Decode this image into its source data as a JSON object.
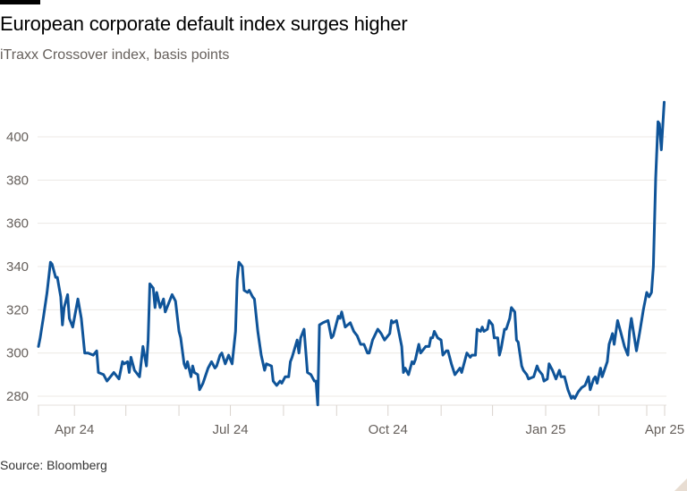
{
  "title": "European corporate default index surges higher",
  "subtitle": "iTraxx Crossover index, basis points",
  "source": "Source: Bloomberg",
  "chart_data": {
    "type": "line",
    "title": "European corporate default index surges higher",
    "subtitle": "iTraxx Crossover index, basis points",
    "xlabel": "",
    "ylabel": "",
    "ylim": [
      275,
      420
    ],
    "yticks": [
      280,
      300,
      320,
      340,
      360,
      380,
      400
    ],
    "grid": true,
    "line_color": "#0f5499",
    "x_range": [
      "2024-03-11",
      "2025-04-08"
    ],
    "xticks": [
      {
        "date": "2024-03-11",
        "label": ""
      },
      {
        "date": "2024-04-01",
        "label": "Apr 24"
      },
      {
        "date": "2024-05-01",
        "label": ""
      },
      {
        "date": "2024-06-01",
        "label": ""
      },
      {
        "date": "2024-07-01",
        "label": "Jul 24"
      },
      {
        "date": "2024-08-01",
        "label": ""
      },
      {
        "date": "2024-09-01",
        "label": ""
      },
      {
        "date": "2024-10-01",
        "label": "Oct 24"
      },
      {
        "date": "2024-11-01",
        "label": ""
      },
      {
        "date": "2024-12-01",
        "label": ""
      },
      {
        "date": "2025-01-01",
        "label": "Jan 25"
      },
      {
        "date": "2025-02-01",
        "label": ""
      },
      {
        "date": "2025-03-01",
        "label": ""
      },
      {
        "date": "2025-04-08",
        "label": "Apr 25"
      }
    ],
    "series": [
      {
        "points": [
          [
            "2024-03-11",
            303
          ],
          [
            "2024-03-12",
            307
          ],
          [
            "2024-03-14",
            317
          ],
          [
            "2024-03-16",
            328
          ],
          [
            "2024-03-18",
            342
          ],
          [
            "2024-03-19",
            341
          ],
          [
            "2024-03-21",
            335
          ],
          [
            "2024-03-22",
            335
          ],
          [
            "2024-03-24",
            326
          ],
          [
            "2024-03-25",
            313
          ],
          [
            "2024-03-26",
            321
          ],
          [
            "2024-03-28",
            327
          ],
          [
            "2024-03-29",
            316
          ],
          [
            "2024-03-31",
            312
          ],
          [
            "2024-04-03",
            325
          ],
          [
            "2024-04-05",
            316
          ],
          [
            "2024-04-07",
            300
          ],
          [
            "2024-04-09",
            300
          ],
          [
            "2024-04-12",
            299
          ],
          [
            "2024-04-14",
            301
          ],
          [
            "2024-04-15",
            291
          ],
          [
            "2024-04-18",
            290
          ],
          [
            "2024-04-20",
            287
          ],
          [
            "2024-04-24",
            291
          ],
          [
            "2024-04-27",
            288
          ],
          [
            "2024-04-29",
            296
          ],
          [
            "2024-04-30",
            295
          ],
          [
            "2024-05-02",
            296
          ],
          [
            "2024-05-03",
            291
          ],
          [
            "2024-05-04",
            298
          ],
          [
            "2024-05-06",
            292
          ],
          [
            "2024-05-09",
            289
          ],
          [
            "2024-05-11",
            303
          ],
          [
            "2024-05-13",
            294
          ],
          [
            "2024-05-14",
            306
          ],
          [
            "2024-05-15",
            332
          ],
          [
            "2024-05-17",
            330
          ],
          [
            "2024-05-18",
            321
          ],
          [
            "2024-05-19",
            328
          ],
          [
            "2024-05-21",
            321
          ],
          [
            "2024-05-23",
            325
          ],
          [
            "2024-05-24",
            319
          ],
          [
            "2024-05-28",
            327
          ],
          [
            "2024-05-30",
            324
          ],
          [
            "2024-06-01",
            310
          ],
          [
            "2024-06-02",
            307
          ],
          [
            "2024-06-04",
            295
          ],
          [
            "2024-06-05",
            293
          ],
          [
            "2024-06-06",
            296
          ],
          [
            "2024-06-08",
            289
          ],
          [
            "2024-06-09",
            294
          ],
          [
            "2024-06-10",
            291
          ],
          [
            "2024-06-12",
            290
          ],
          [
            "2024-06-13",
            283
          ],
          [
            "2024-06-15",
            286
          ],
          [
            "2024-06-18",
            293
          ],
          [
            "2024-06-20",
            296
          ],
          [
            "2024-06-22",
            293
          ],
          [
            "2024-06-23",
            294
          ],
          [
            "2024-06-25",
            299
          ],
          [
            "2024-06-26",
            300
          ],
          [
            "2024-06-28",
            295
          ],
          [
            "2024-06-30",
            299
          ],
          [
            "2024-07-02",
            295
          ],
          [
            "2024-07-04",
            310
          ],
          [
            "2024-07-05",
            334
          ],
          [
            "2024-07-06",
            342
          ],
          [
            "2024-07-08",
            340
          ],
          [
            "2024-07-09",
            329
          ],
          [
            "2024-07-11",
            328
          ],
          [
            "2024-07-12",
            329
          ],
          [
            "2024-07-14",
            326
          ],
          [
            "2024-07-15",
            325
          ],
          [
            "2024-07-17",
            310
          ],
          [
            "2024-07-19",
            299
          ],
          [
            "2024-07-21",
            292
          ],
          [
            "2024-07-22",
            295
          ],
          [
            "2024-07-25",
            294
          ],
          [
            "2024-07-26",
            287
          ],
          [
            "2024-07-28",
            285
          ],
          [
            "2024-07-30",
            287
          ],
          [
            "2024-07-31",
            286
          ],
          [
            "2024-08-02",
            289
          ],
          [
            "2024-08-04",
            289
          ],
          [
            "2024-08-05",
            296
          ],
          [
            "2024-08-06",
            298
          ],
          [
            "2024-08-09",
            306
          ],
          [
            "2024-08-10",
            300
          ],
          [
            "2024-08-11",
            307
          ],
          [
            "2024-08-13",
            311
          ],
          [
            "2024-08-15",
            291
          ],
          [
            "2024-08-17",
            290
          ],
          [
            "2024-08-19",
            287
          ],
          [
            "2024-08-20",
            287
          ],
          [
            "2024-08-21",
            276
          ],
          [
            "2024-08-22",
            313
          ],
          [
            "2024-08-24",
            314
          ],
          [
            "2024-08-27",
            315
          ],
          [
            "2024-08-29",
            307
          ],
          [
            "2024-08-30",
            308
          ],
          [
            "2024-09-02",
            317
          ],
          [
            "2024-09-03",
            316
          ],
          [
            "2024-09-04",
            319
          ],
          [
            "2024-09-06",
            312
          ],
          [
            "2024-09-09",
            314
          ],
          [
            "2024-09-11",
            310
          ],
          [
            "2024-09-13",
            308
          ],
          [
            "2024-09-15",
            304
          ],
          [
            "2024-09-17",
            304
          ],
          [
            "2024-09-19",
            300
          ],
          [
            "2024-09-20",
            300
          ],
          [
            "2024-09-22",
            306
          ],
          [
            "2024-09-25",
            311
          ],
          [
            "2024-09-27",
            309
          ],
          [
            "2024-09-29",
            306
          ],
          [
            "2024-10-02",
            309
          ],
          [
            "2024-10-03",
            315
          ],
          [
            "2024-10-04",
            314
          ],
          [
            "2024-10-06",
            315
          ],
          [
            "2024-10-09",
            303
          ],
          [
            "2024-10-10",
            291
          ],
          [
            "2024-10-11",
            293
          ],
          [
            "2024-10-13",
            290
          ],
          [
            "2024-10-15",
            296
          ],
          [
            "2024-10-16",
            295
          ],
          [
            "2024-10-17",
            297
          ],
          [
            "2024-10-19",
            304
          ],
          [
            "2024-10-20",
            300
          ],
          [
            "2024-10-23",
            303
          ],
          [
            "2024-10-25",
            303
          ],
          [
            "2024-10-26",
            307
          ],
          [
            "2024-10-27",
            307
          ],
          [
            "2024-10-28",
            310
          ],
          [
            "2024-10-30",
            307
          ],
          [
            "2024-11-01",
            306
          ],
          [
            "2024-11-02",
            299
          ],
          [
            "2024-11-04",
            301
          ],
          [
            "2024-11-05",
            301
          ],
          [
            "2024-11-07",
            295
          ],
          [
            "2024-11-09",
            290
          ],
          [
            "2024-11-11",
            292
          ],
          [
            "2024-11-12",
            293
          ],
          [
            "2024-11-13",
            291
          ],
          [
            "2024-11-16",
            300
          ],
          [
            "2024-11-18",
            298
          ],
          [
            "2024-11-19",
            299
          ],
          [
            "2024-11-21",
            299
          ],
          [
            "2024-11-22",
            311
          ],
          [
            "2024-11-24",
            310
          ],
          [
            "2024-11-25",
            312
          ],
          [
            "2024-11-26",
            310
          ],
          [
            "2024-11-28",
            311
          ],
          [
            "2024-11-29",
            315
          ],
          [
            "2024-12-01",
            313
          ],
          [
            "2024-12-02",
            307
          ],
          [
            "2024-12-04",
            307
          ],
          [
            "2024-12-05",
            299
          ],
          [
            "2024-12-06",
            302
          ],
          [
            "2024-12-08",
            311
          ],
          [
            "2024-12-09",
            311
          ],
          [
            "2024-12-11",
            316
          ],
          [
            "2024-12-12",
            321
          ],
          [
            "2024-12-14",
            319
          ],
          [
            "2024-12-15",
            306
          ],
          [
            "2024-12-16",
            305
          ],
          [
            "2024-12-18",
            294
          ],
          [
            "2024-12-19",
            292
          ],
          [
            "2024-12-21",
            290
          ],
          [
            "2024-12-22",
            288
          ],
          [
            "2024-12-25",
            289
          ],
          [
            "2024-12-27",
            294
          ],
          [
            "2024-12-28",
            292
          ],
          [
            "2024-12-30",
            290
          ],
          [
            "2024-12-31",
            287
          ],
          [
            "2025-01-02",
            288
          ],
          [
            "2025-01-03",
            295
          ],
          [
            "2025-01-05",
            292
          ],
          [
            "2025-01-07",
            288
          ],
          [
            "2025-01-09",
            292
          ],
          [
            "2025-01-10",
            289
          ],
          [
            "2025-01-12",
            289
          ],
          [
            "2025-01-14",
            283
          ],
          [
            "2025-01-16",
            279
          ],
          [
            "2025-01-17",
            280
          ],
          [
            "2025-01-18",
            279
          ],
          [
            "2025-01-20",
            282
          ],
          [
            "2025-01-22",
            284
          ],
          [
            "2025-01-24",
            285
          ],
          [
            "2025-01-26",
            289
          ],
          [
            "2025-01-27",
            283
          ],
          [
            "2025-01-29",
            288
          ],
          [
            "2025-01-30",
            289
          ],
          [
            "2025-01-31",
            286
          ],
          [
            "2025-02-02",
            293
          ],
          [
            "2025-02-03",
            289
          ],
          [
            "2025-02-06",
            296
          ],
          [
            "2025-02-07",
            304
          ],
          [
            "2025-02-09",
            309
          ],
          [
            "2025-02-10",
            304
          ],
          [
            "2025-02-12",
            315
          ],
          [
            "2025-02-14",
            309
          ],
          [
            "2025-02-16",
            303
          ],
          [
            "2025-02-18",
            299
          ],
          [
            "2025-02-19",
            310
          ],
          [
            "2025-02-20",
            316
          ],
          [
            "2025-02-22",
            306
          ],
          [
            "2025-02-23",
            301
          ],
          [
            "2025-02-25",
            310
          ],
          [
            "2025-02-27",
            320
          ],
          [
            "2025-03-01",
            328
          ],
          [
            "2025-03-06",
            326
          ],
          [
            "2025-03-11",
            328
          ],
          [
            "2025-03-15",
            340
          ],
          [
            "2025-03-20",
            381
          ],
          [
            "2025-03-25",
            407
          ],
          [
            "2025-03-28",
            406
          ],
          [
            "2025-04-01",
            394
          ],
          [
            "2025-04-07",
            416
          ]
        ]
      }
    ]
  }
}
